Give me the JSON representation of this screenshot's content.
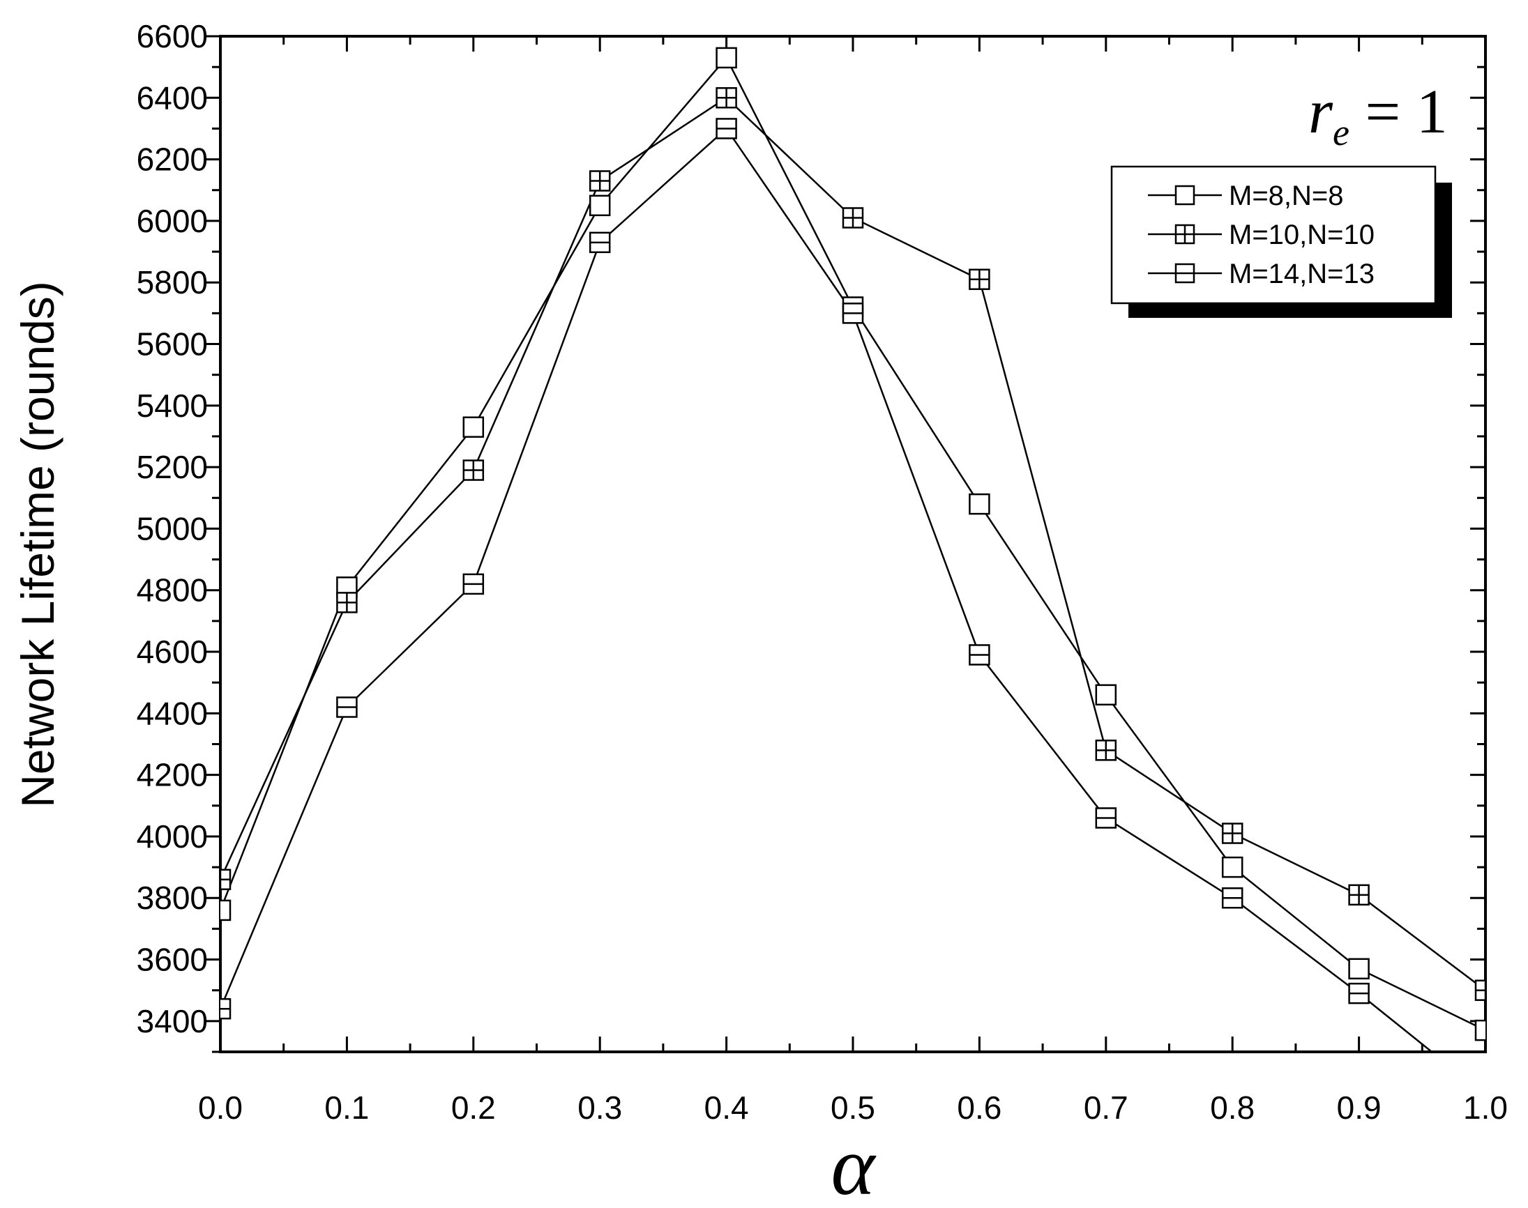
{
  "chart_data": {
    "type": "line",
    "title": "",
    "xlabel": "α",
    "ylabel": "Network Lifetime (rounds)",
    "xlim": [
      0.0,
      1.0
    ],
    "ylim": [
      3300,
      6600
    ],
    "xticks": [
      "0.0",
      "0.1",
      "0.2",
      "0.3",
      "0.4",
      "0.5",
      "0.6",
      "0.7",
      "0.8",
      "0.9",
      "1.0"
    ],
    "yticks": [
      "3400",
      "3600",
      "3800",
      "4000",
      "4200",
      "4400",
      "4600",
      "4800",
      "5000",
      "5200",
      "5400",
      "5600",
      "5800",
      "6000",
      "6200",
      "6400",
      "6600"
    ],
    "grid": false,
    "legend_position": "top-right",
    "annotation": {
      "symbol": "r",
      "subscript": "e",
      "rest": " = 1"
    },
    "x": [
      0.0,
      0.1,
      0.2,
      0.3,
      0.4,
      0.5,
      0.6,
      0.7,
      0.8,
      0.9,
      1.0
    ],
    "series": [
      {
        "name": "M=8,N=8",
        "marker": "square",
        "values": [
          3760,
          4810,
          5330,
          6050,
          6530,
          5720,
          5080,
          4460,
          3900,
          3570,
          3370
        ]
      },
      {
        "name": "M=10,N=10",
        "marker": "square-plus",
        "values": [
          3860,
          4760,
          5190,
          6130,
          6400,
          6010,
          5810,
          4280,
          4010,
          3810,
          3500
        ]
      },
      {
        "name": "M=14,N=13",
        "marker": "square-minus",
        "values": [
          3440,
          4420,
          4820,
          5930,
          6300,
          5700,
          4590,
          4060,
          3800,
          3490,
          3160
        ]
      }
    ]
  }
}
